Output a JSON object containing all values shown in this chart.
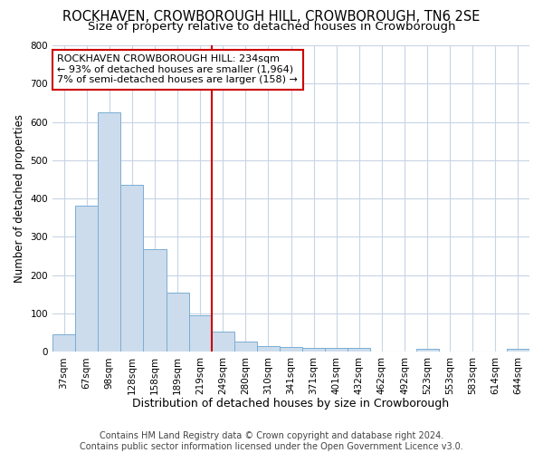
{
  "title1": "ROCKHAVEN, CROWBOROUGH HILL, CROWBOROUGH, TN6 2SE",
  "title2": "Size of property relative to detached houses in Crowborough",
  "xlabel": "Distribution of detached houses by size in Crowborough",
  "ylabel": "Number of detached properties",
  "categories": [
    "37sqm",
    "67sqm",
    "98sqm",
    "128sqm",
    "158sqm",
    "189sqm",
    "219sqm",
    "249sqm",
    "280sqm",
    "310sqm",
    "341sqm",
    "371sqm",
    "401sqm",
    "432sqm",
    "462sqm",
    "492sqm",
    "523sqm",
    "553sqm",
    "583sqm",
    "614sqm",
    "644sqm"
  ],
  "values": [
    46,
    382,
    624,
    437,
    267,
    155,
    95,
    52,
    28,
    15,
    12,
    10,
    10,
    10,
    0,
    0,
    7,
    0,
    0,
    0,
    7
  ],
  "bar_color": "#ccdcec",
  "bar_edge_color": "#7aaed4",
  "vline_color": "#cc0000",
  "vline_pos": 7,
  "annotation_line1": "ROCKHAVEN CROWBOROUGH HILL: 234sqm",
  "annotation_line2": "← 93% of detached houses are smaller (1,964)",
  "annotation_line3": "7% of semi-detached houses are larger (158) →",
  "annotation_box_edge": "#cc0000",
  "ylim": [
    0,
    800
  ],
  "yticks": [
    0,
    100,
    200,
    300,
    400,
    500,
    600,
    700,
    800
  ],
  "footer1": "Contains HM Land Registry data © Crown copyright and database right 2024.",
  "footer2": "Contains public sector information licensed under the Open Government Licence v3.0.",
  "bg_color": "#ffffff",
  "plot_bg_color": "#ffffff",
  "grid_color": "#c8d4e4",
  "title1_fontsize": 10.5,
  "title2_fontsize": 9.5,
  "xlabel_fontsize": 9,
  "ylabel_fontsize": 8.5,
  "tick_fontsize": 7.5,
  "footer_fontsize": 7,
  "annotation_fontsize": 8
}
